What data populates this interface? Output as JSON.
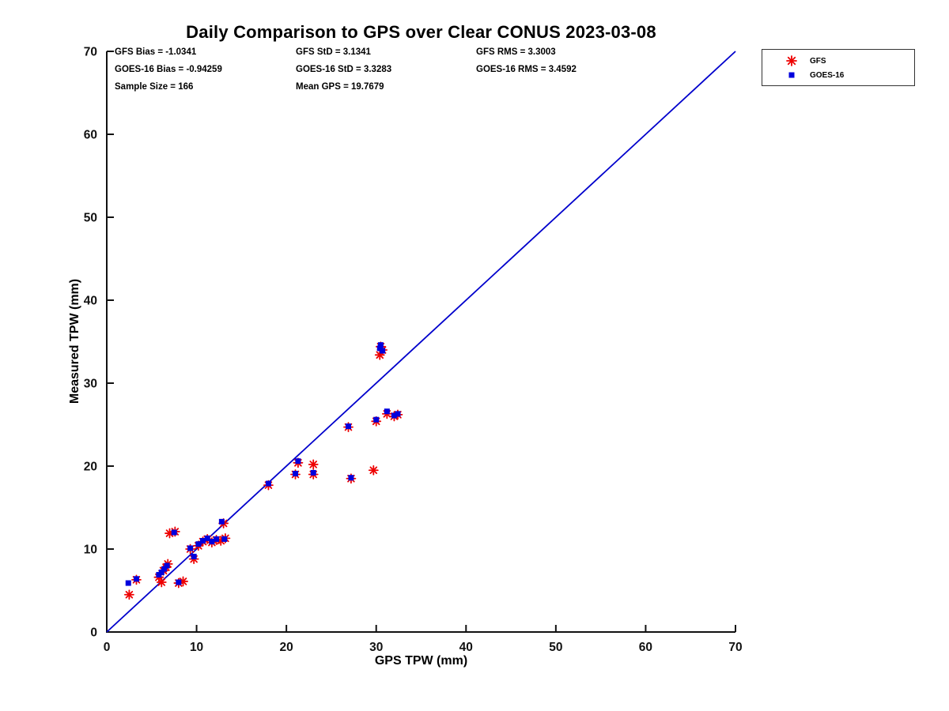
{
  "title": "Daily Comparison to GPS over Clear CONUS 2023-03-08",
  "stats": {
    "col1": [
      "GFS Bias = -1.0341",
      "GOES-16 Bias = -0.94259",
      "Sample Size = 166"
    ],
    "col2": [
      "GFS StD = 3.1341",
      "GOES-16 StD = 3.3283",
      "Mean GPS = 19.7679"
    ],
    "col3": [
      "GFS RMS = 3.3003",
      "GOES-16 RMS = 3.4592"
    ]
  },
  "legend": [
    {
      "label": "GFS",
      "marker": "asterisk",
      "color": "#ee0000"
    },
    {
      "label": "GOES-16",
      "marker": "square",
      "color": "#0000dd"
    }
  ],
  "chart_data": {
    "type": "scatter",
    "title": "Daily Comparison to GPS over Clear CONUS 2023-03-08",
    "xlabel": "GPS TPW (mm)",
    "ylabel": "Measured TPW (mm)",
    "xlim": [
      0,
      70
    ],
    "ylim": [
      0,
      70
    ],
    "xticks": [
      0,
      10,
      20,
      30,
      40,
      50,
      60,
      70
    ],
    "yticks": [
      0,
      10,
      20,
      30,
      40,
      50,
      60,
      70
    ],
    "grid": false,
    "legend_position": "top-right-outside",
    "identity_line": {
      "x": [
        0,
        70
      ],
      "y": [
        0,
        70
      ],
      "color": "#0000cc"
    },
    "series": [
      {
        "name": "GFS",
        "marker": "asterisk",
        "color": "#ee0000",
        "points": [
          [
            2.5,
            4.5
          ],
          [
            3.3,
            6.3
          ],
          [
            5.8,
            6.6
          ],
          [
            6.1,
            6.0
          ],
          [
            6.3,
            7.4
          ],
          [
            6.6,
            7.8
          ],
          [
            6.8,
            8.2
          ],
          [
            7.0,
            11.9
          ],
          [
            7.6,
            12.1
          ],
          [
            8.0,
            5.9
          ],
          [
            8.5,
            6.1
          ],
          [
            9.3,
            10.0
          ],
          [
            9.7,
            8.8
          ],
          [
            10.2,
            10.4
          ],
          [
            10.7,
            10.9
          ],
          [
            11.2,
            11.2
          ],
          [
            11.7,
            10.8
          ],
          [
            12.2,
            11.1
          ],
          [
            12.7,
            11.0
          ],
          [
            13.0,
            13.1
          ],
          [
            13.2,
            11.3
          ],
          [
            18.0,
            17.7
          ],
          [
            21.0,
            19.0
          ],
          [
            21.3,
            20.4
          ],
          [
            23.0,
            20.2
          ],
          [
            23.0,
            19.0
          ],
          [
            26.9,
            24.7
          ],
          [
            27.2,
            18.5
          ],
          [
            29.7,
            19.5
          ],
          [
            30.0,
            25.4
          ],
          [
            30.4,
            33.4
          ],
          [
            30.5,
            34.4
          ],
          [
            30.7,
            34.0
          ],
          [
            31.2,
            26.3
          ],
          [
            32.0,
            26.0
          ],
          [
            32.4,
            26.2
          ]
        ]
      },
      {
        "name": "GOES-16",
        "marker": "square",
        "color": "#0000dd",
        "points": [
          [
            2.4,
            5.9
          ],
          [
            3.3,
            6.4
          ],
          [
            5.8,
            6.9
          ],
          [
            6.1,
            7.2
          ],
          [
            6.4,
            7.6
          ],
          [
            6.7,
            8.0
          ],
          [
            7.5,
            12.0
          ],
          [
            8.0,
            6.0
          ],
          [
            9.3,
            10.1
          ],
          [
            9.7,
            9.1
          ],
          [
            10.2,
            10.6
          ],
          [
            10.7,
            11.0
          ],
          [
            11.2,
            11.3
          ],
          [
            11.7,
            10.9
          ],
          [
            12.2,
            11.2
          ],
          [
            12.8,
            13.3
          ],
          [
            13.1,
            11.2
          ],
          [
            18.0,
            17.9
          ],
          [
            21.0,
            19.1
          ],
          [
            21.3,
            20.6
          ],
          [
            23.0,
            19.2
          ],
          [
            26.9,
            24.8
          ],
          [
            27.2,
            18.6
          ],
          [
            30.0,
            25.6
          ],
          [
            30.4,
            34.2
          ],
          [
            30.5,
            34.6
          ],
          [
            30.7,
            33.9
          ],
          [
            31.2,
            26.6
          ],
          [
            32.0,
            26.1
          ],
          [
            32.4,
            26.3
          ]
        ]
      }
    ]
  }
}
